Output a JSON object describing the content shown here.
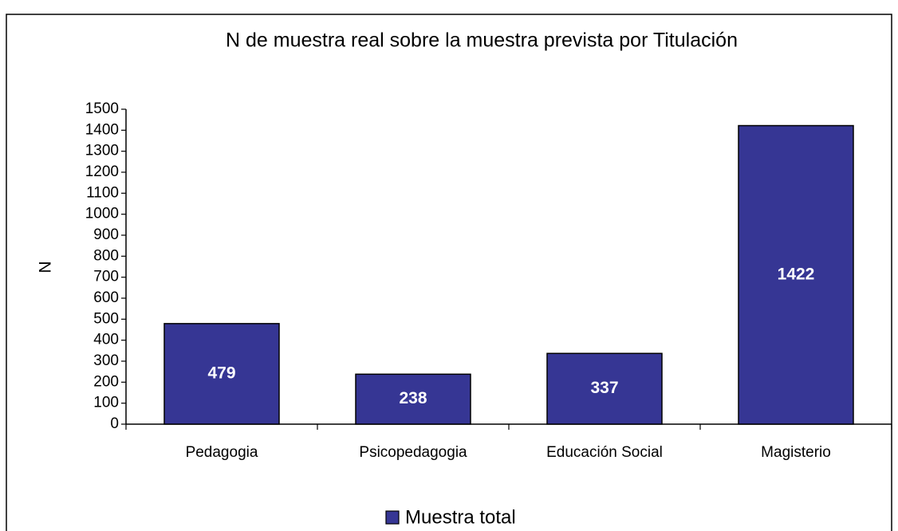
{
  "chart_data": {
    "type": "bar",
    "title": "N de muestra real sobre la muestra prevista por Titulación",
    "y_label": "N",
    "categories": [
      "Pedagogia",
      "Psicopedagogia",
      "Educación Social",
      "Magisterio"
    ],
    "series": [
      {
        "name": "Muestra total",
        "color": "#363694",
        "values": [
          479,
          238,
          337,
          1422
        ]
      }
    ],
    "ylim": [
      0,
      1500
    ],
    "yticks": [
      0,
      100,
      200,
      300,
      400,
      500,
      600,
      700,
      800,
      900,
      1000,
      1100,
      1200,
      1300,
      1400,
      1500
    ],
    "legend": "bottom"
  }
}
